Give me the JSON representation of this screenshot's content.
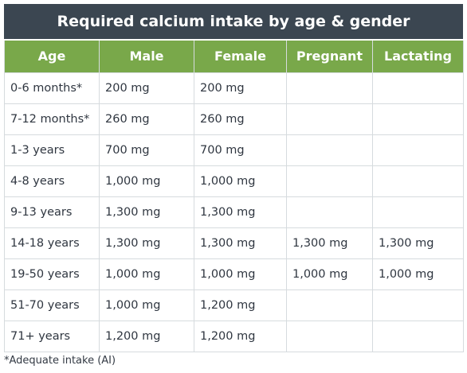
{
  "title": "Required calcium intake by age & gender",
  "columns": [
    "Age",
    "Male",
    "Female",
    "Pregnant",
    "Lactating"
  ],
  "rows": [
    [
      "0-6 months*",
      "200 mg",
      "200 mg",
      "",
      ""
    ],
    [
      "7-12 months*",
      "260 mg",
      "260 mg",
      "",
      ""
    ],
    [
      "1-3 years",
      "700 mg",
      "700 mg",
      "",
      ""
    ],
    [
      "4-8 years",
      "1,000 mg",
      "1,000 mg",
      "",
      ""
    ],
    [
      "9-13 years",
      "1,300 mg",
      "1,300 mg",
      "",
      ""
    ],
    [
      "14-18 years",
      "1,300 mg",
      "1,300 mg",
      "1,300 mg",
      "1,300 mg"
    ],
    [
      "19-50 years",
      "1,000 mg",
      "1,000 mg",
      "1,000 mg",
      "1,000 mg"
    ],
    [
      "51-70 years",
      "1,000 mg",
      "1,200 mg",
      "",
      ""
    ],
    [
      "71+ years",
      "1,200 mg",
      "1,200 mg",
      "",
      ""
    ]
  ],
  "footnote": "*Adequate intake (AI)",
  "colors": {
    "title_bg": "#3b4651",
    "header_bg": "#79a84a",
    "border": "#d6dbde"
  }
}
